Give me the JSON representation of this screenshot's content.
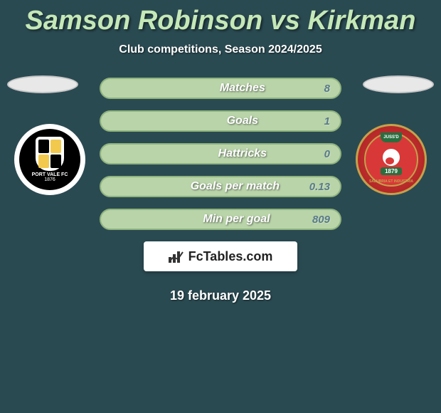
{
  "title": "Samson Robinson vs Kirkman",
  "subtitle": "Club competitions, Season 2024/2025",
  "stats": [
    {
      "label": "Matches",
      "value": "8"
    },
    {
      "label": "Goals",
      "value": "1"
    },
    {
      "label": "Hattricks",
      "value": "0"
    },
    {
      "label": "Goals per match",
      "value": "0.13"
    },
    {
      "label": "Min per goal",
      "value": "809"
    }
  ],
  "brand": "FcTables.com",
  "date": "19 february 2025",
  "badge_left": {
    "name": "PORT VALE FC",
    "year": "1876"
  },
  "badge_right": {
    "top": "JUSS'D",
    "year": "1879",
    "banner": "SALUBRIA ET INDUSTRIA"
  },
  "colors": {
    "bg": "#2a4a52",
    "title": "#c5e8b7",
    "pill_bg": "#b8d4a8",
    "pill_border": "#8fb37d",
    "value": "#5a7a8a"
  }
}
